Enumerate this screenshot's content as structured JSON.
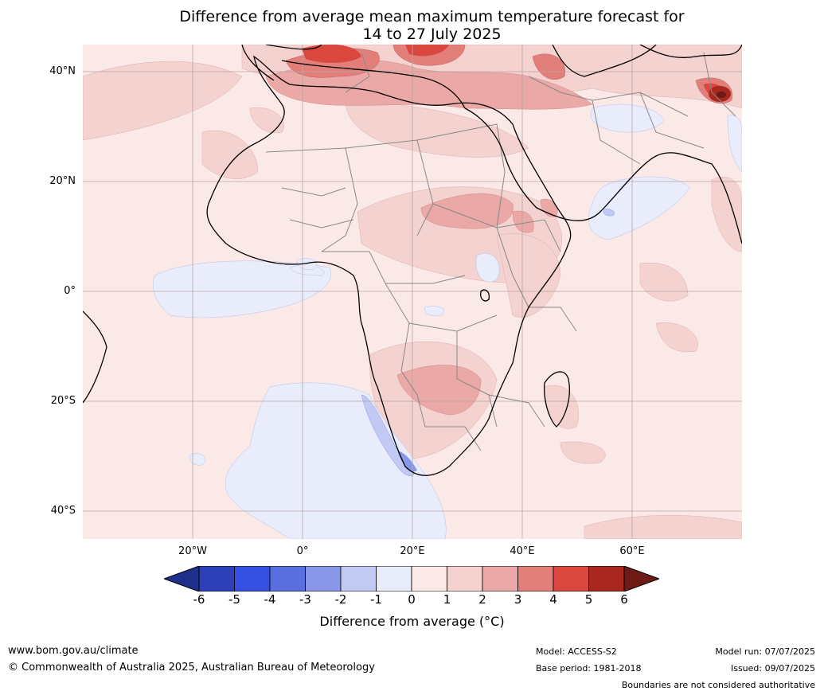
{
  "title": {
    "line1": "Difference from average mean maximum temperature forecast for",
    "line2": "14 to 27 July 2025"
  },
  "map": {
    "lat_labels": [
      "40°N",
      "20°N",
      "0°",
      "20°S",
      "40°S"
    ],
    "lon_labels": [
      "20°W",
      "0°",
      "20°E",
      "40°E",
      "60°E"
    ],
    "colors": {
      "background": "#fbe9e8",
      "neutral_cool": "#e8ecfb",
      "warm_1": "#f4d2d0",
      "warm_2": "#eaa8a6",
      "warm_3": "#e27f7b",
      "warm_4": "#d9473e",
      "warm_5": "#a8281f",
      "cool_2": "#c2c9f3",
      "cool_3": "#8a97e8",
      "land_border": "#888888",
      "coast": "#000000"
    }
  },
  "colorbar": {
    "ticks": [
      "-6",
      "-5",
      "-4",
      "-3",
      "-2",
      "-1",
      "0",
      "1",
      "2",
      "3",
      "4",
      "5",
      "6"
    ],
    "colors": [
      "#1f2f8c",
      "#2d3fb8",
      "#3550e0",
      "#5a6ee0",
      "#8a97e8",
      "#c2c9f3",
      "#e8ecfb",
      "#fbe9e8",
      "#f4d2d0",
      "#eaa8a6",
      "#e27f7b",
      "#d9473e",
      "#a8281f",
      "#6e1a16"
    ],
    "label": "Difference from average (°C)"
  },
  "footer": {
    "website": "www.bom.gov.au/climate",
    "copyright": "© Commonwealth of Australia 2025, Australian Bureau of Meteorology",
    "model": "Model: ACCESS-S2",
    "base_period": "Base period: 1981-2018",
    "model_run": "Model run: 07/07/2025",
    "issued": "Issued: 09/07/2025",
    "disclaimer": "Boundaries are not considered authoritative"
  }
}
